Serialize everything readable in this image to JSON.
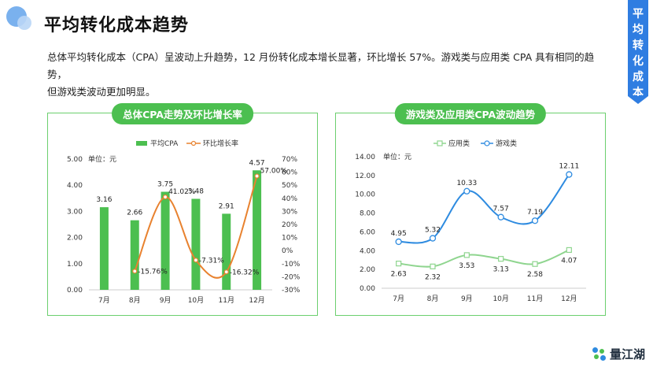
{
  "header": {
    "title": "平均转化成本趋势"
  },
  "side_tab": {
    "text": "平均转化成本"
  },
  "summary": {
    "line1": "总体平均转化成本（CPA）呈波动上升趋势，12 月份转化成本增长显著，环比增长 57%。游戏类与应用类 CPA 具有相同的趋势，",
    "line2": "但游戏类波动更加明显。"
  },
  "brand": {
    "name": "量江湖"
  },
  "colors": {
    "green": "#4cbf50",
    "orange": "#e8822f",
    "blue": "#2e8be0",
    "light_green": "#8fd58f",
    "accent": "#2f7de1"
  },
  "chart_data": [
    {
      "type": "bar",
      "title": "总体CPA走势及环比增长率",
      "categories": [
        "7月",
        "8月",
        "9月",
        "10月",
        "11月",
        "12月"
      ],
      "unit_label": "单位：元",
      "ylim": [
        0,
        5
      ],
      "y_ticks": [
        "0.00",
        "1.00",
        "2.00",
        "3.00",
        "4.00",
        "5.00"
      ],
      "y2lim": [
        -30,
        70
      ],
      "y2_ticks": [
        "-30%",
        "-20%",
        "-10%",
        "0%",
        "10%",
        "20%",
        "30%",
        "40%",
        "50%",
        "60%",
        "70%"
      ],
      "series": [
        {
          "name": "平均CPA",
          "kind": "bar",
          "axis": "left",
          "color": "#4cbf50",
          "values": [
            3.16,
            2.66,
            3.75,
            3.48,
            2.91,
            4.57
          ],
          "labels": [
            "3.16",
            "2.66",
            "3.75",
            "3.48",
            "2.91",
            "4.57"
          ]
        },
        {
          "name": "环比增长率",
          "kind": "line",
          "axis": "right",
          "color": "#e8822f",
          "values": [
            null,
            -15.76,
            41.02,
            -7.31,
            -16.32,
            57.0
          ],
          "labels": [
            "",
            "-15.76%",
            "41.02%",
            "-7.31%",
            "-16.32%",
            "57.00%"
          ]
        }
      ],
      "legend": "top-center",
      "grid": false
    },
    {
      "type": "line",
      "title": "游戏类及应用类CPA波动趋势",
      "categories": [
        "7月",
        "8月",
        "9月",
        "10月",
        "11月",
        "12月"
      ],
      "unit_label": "单位：元",
      "ylim": [
        0,
        14
      ],
      "y_ticks": [
        "0.00",
        "2.00",
        "4.00",
        "6.00",
        "8.00",
        "10.00",
        "12.00",
        "14.00"
      ],
      "series": [
        {
          "name": "应用类",
          "color": "#8fd58f",
          "values": [
            2.63,
            2.32,
            3.53,
            3.13,
            2.58,
            4.07
          ],
          "labels": [
            "2.63",
            "2.32",
            "3.53",
            "3.13",
            "2.58",
            "4.07"
          ]
        },
        {
          "name": "游戏类",
          "color": "#2e8be0",
          "values": [
            4.95,
            5.32,
            10.33,
            7.57,
            7.19,
            12.11
          ],
          "labels": [
            "4.95",
            "5.32",
            "10.33",
            "7.57",
            "7.19",
            "12.11"
          ]
        }
      ],
      "legend": "top-center",
      "grid": false
    }
  ]
}
